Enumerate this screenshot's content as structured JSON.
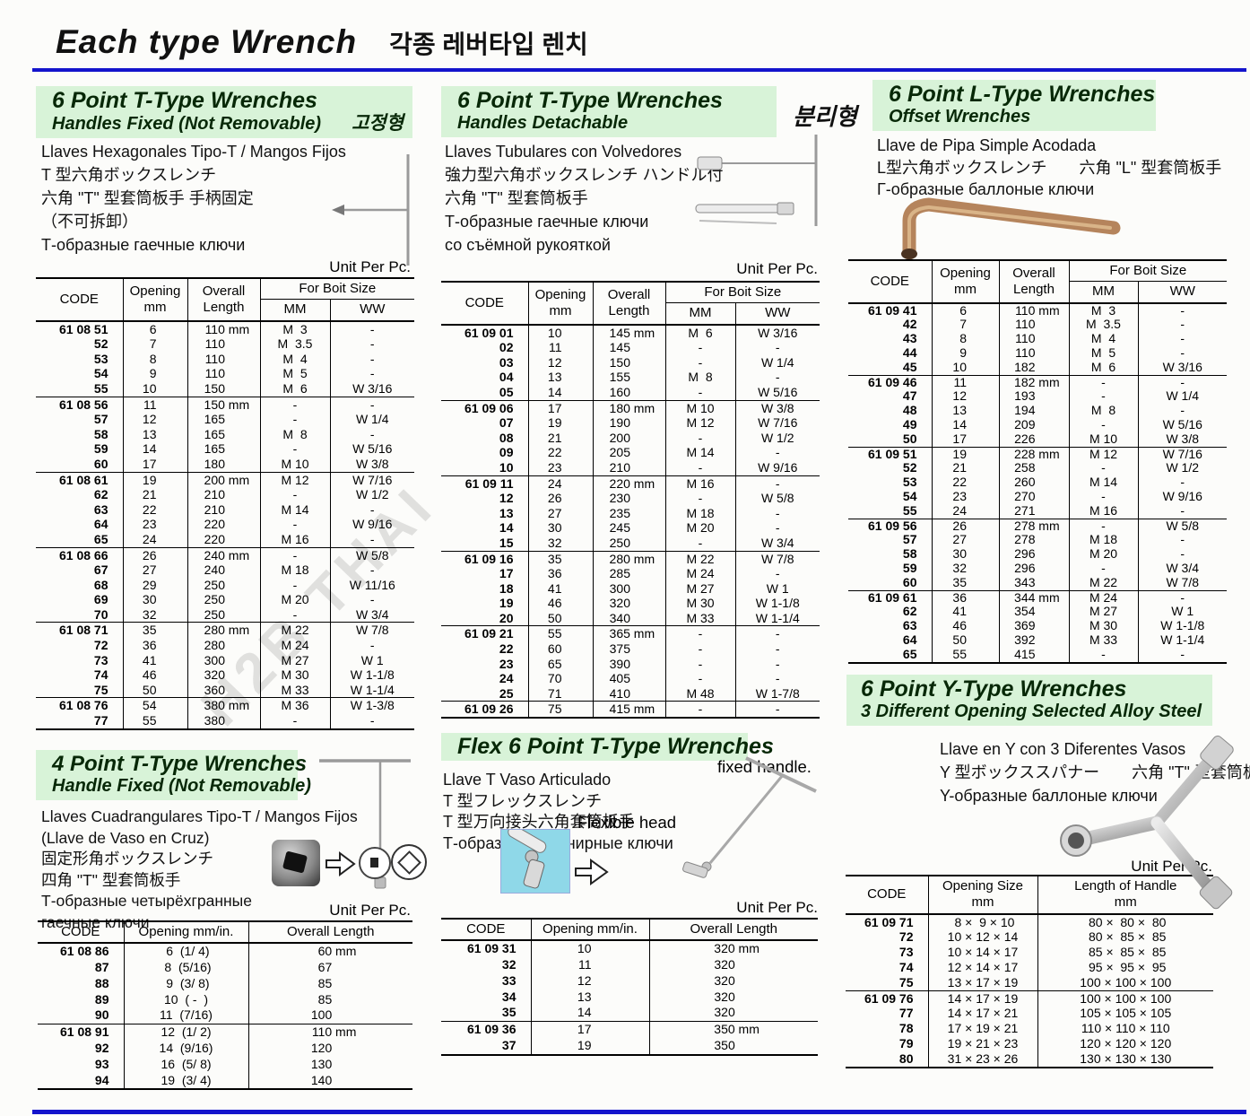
{
  "page": {
    "title_en": "Each type Wrench",
    "title_ko": "각종 레버타입 렌치"
  },
  "labels": {
    "unit": "Unit Per Pc.",
    "fixed_handle": "fixed handle.",
    "flexible_head": "Flexible head",
    "watermark": "H2B THAI"
  },
  "colors": {
    "blue": "#1414cc",
    "green": "#d8f3d8",
    "cyan": "#8fd8e8",
    "bronze": "#b5845c"
  },
  "headers4": {
    "code": "CODE",
    "opening1": "Opening",
    "opening2": "mm",
    "length1": "Overall",
    "length2": "Length",
    "bolt": "For Boit Size",
    "mm": "MM",
    "ww": "WW"
  },
  "headers3": {
    "code": "CODE",
    "opening": "Opening mm/in.",
    "length": "Overall Length"
  },
  "headersY": {
    "code": "CODE",
    "opening1": "Opening Size",
    "opening2": "mm",
    "length1": "Length of Handle",
    "length2": "mm"
  },
  "sections": {
    "t_fixed": {
      "h1": "6 Point T-Type Wrenches",
      "h2": "Handles Fixed (Not Removable)",
      "side": "고정형",
      "desc": [
        "Llaves Hexagonales Tipo-T / Mangos Fijos",
        "T 型六角ボックスレンチ",
        "六角 \"T\" 型套筒板手 手柄固定",
        "（不可拆卸）",
        "Т-образные гаечные ключи"
      ],
      "groups": [
        [
          [
            "61 08 51",
            "6",
            "110 mm",
            "M  3",
            "-"
          ],
          [
            "52",
            "7",
            "110",
            "M  3.5",
            "-"
          ],
          [
            "53",
            "8",
            "110",
            "M  4",
            "-"
          ],
          [
            "54",
            "9",
            "110",
            "M  5",
            "-"
          ],
          [
            "55",
            "10",
            "150",
            "M  6",
            "W 3/16"
          ]
        ],
        [
          [
            "61 08 56",
            "11",
            "150 mm",
            "-",
            "-"
          ],
          [
            "57",
            "12",
            "165",
            "-",
            "W 1/4"
          ],
          [
            "58",
            "13",
            "165",
            "M  8",
            "-"
          ],
          [
            "59",
            "14",
            "165",
            "-",
            "W 5/16"
          ],
          [
            "60",
            "17",
            "180",
            "M 10",
            "W 3/8"
          ]
        ],
        [
          [
            "61 08 61",
            "19",
            "200 mm",
            "M 12",
            "W 7/16"
          ],
          [
            "62",
            "21",
            "210",
            "-",
            "W 1/2"
          ],
          [
            "63",
            "22",
            "210",
            "M 14",
            "-"
          ],
          [
            "64",
            "23",
            "220",
            "-",
            "W 9/16"
          ],
          [
            "65",
            "24",
            "220",
            "M 16",
            "-"
          ]
        ],
        [
          [
            "61 08 66",
            "26",
            "240 mm",
            "-",
            "W 5/8"
          ],
          [
            "67",
            "27",
            "240",
            "M 18",
            "-"
          ],
          [
            "68",
            "29",
            "250",
            "-",
            "W 11/16"
          ],
          [
            "69",
            "30",
            "250",
            "M 20",
            "-"
          ],
          [
            "70",
            "32",
            "250",
            "-",
            "W 3/4"
          ]
        ],
        [
          [
            "61 08 71",
            "35",
            "280 mm",
            "M 22",
            "W 7/8"
          ],
          [
            "72",
            "36",
            "280",
            "M 24",
            "-"
          ],
          [
            "73",
            "41",
            "300",
            "M 27",
            "W 1"
          ],
          [
            "74",
            "46",
            "320",
            "M 30",
            "W 1-1/8"
          ],
          [
            "75",
            "50",
            "360",
            "M 33",
            "W 1-1/4"
          ]
        ],
        [
          [
            "61 08 76",
            "54",
            "380 mm",
            "M 36",
            "W 1-3/8"
          ],
          [
            "77",
            "55",
            "380",
            "-",
            "-"
          ]
        ]
      ]
    },
    "t_detach": {
      "h1": "6 Point T-Type Wrenches",
      "h2": "Handles Detachable",
      "side": "분리형",
      "desc": [
        "Llaves Tubulares con Volvedores",
        "強力型六角ボックスレンチ ハンドル付",
        "六角 \"T\" 型套筒板手",
        "Т-образные гаечные ключи",
        "со съёмной рукояткой"
      ],
      "groups": [
        [
          [
            "61 09 01",
            "10",
            "145 mm",
            "M  6",
            "W 3/16"
          ],
          [
            "02",
            "11",
            "145",
            "-",
            "-"
          ],
          [
            "03",
            "12",
            "150",
            "-",
            "W 1/4"
          ],
          [
            "04",
            "13",
            "155",
            "M  8",
            "-"
          ],
          [
            "05",
            "14",
            "160",
            "-",
            "W 5/16"
          ]
        ],
        [
          [
            "61 09 06",
            "17",
            "180 mm",
            "M 10",
            "W 3/8"
          ],
          [
            "07",
            "19",
            "190",
            "M 12",
            "W 7/16"
          ],
          [
            "08",
            "21",
            "200",
            "-",
            "W 1/2"
          ],
          [
            "09",
            "22",
            "205",
            "M 14",
            "-"
          ],
          [
            "10",
            "23",
            "210",
            "-",
            "W 9/16"
          ]
        ],
        [
          [
            "61 09 11",
            "24",
            "220 mm",
            "M 16",
            "-"
          ],
          [
            "12",
            "26",
            "230",
            "-",
            "W 5/8"
          ],
          [
            "13",
            "27",
            "235",
            "M 18",
            "-"
          ],
          [
            "14",
            "30",
            "245",
            "M 20",
            "-"
          ],
          [
            "15",
            "32",
            "250",
            "-",
            "W 3/4"
          ]
        ],
        [
          [
            "61 09 16",
            "35",
            "280 mm",
            "M 22",
            "W 7/8"
          ],
          [
            "17",
            "36",
            "285",
            "M 24",
            "-"
          ],
          [
            "18",
            "41",
            "300",
            "M 27",
            "W 1"
          ],
          [
            "19",
            "46",
            "320",
            "M 30",
            "W 1-1/8"
          ],
          [
            "20",
            "50",
            "340",
            "M 33",
            "W 1-1/4"
          ]
        ],
        [
          [
            "61 09 21",
            "55",
            "365 mm",
            "-",
            "-"
          ],
          [
            "22",
            "60",
            "375",
            "-",
            "-"
          ],
          [
            "23",
            "65",
            "390",
            "-",
            "-"
          ],
          [
            "24",
            "70",
            "405",
            "-",
            "-"
          ],
          [
            "25",
            "71",
            "410",
            "M 48",
            "W 1-7/8"
          ]
        ],
        [
          [
            "61 09 26",
            "75",
            "415 mm",
            "-",
            "-"
          ]
        ]
      ]
    },
    "l_type": {
      "h1": "6 Point L-Type Wrenches",
      "h2": "Offset Wrenches",
      "desc": [
        "Llave de Pipa Simple Acodada",
        "L型六角ボックスレンチ　　六角 \"L\" 型套筒板手",
        "Г-образные баллоные ключи"
      ],
      "groups": [
        [
          [
            "61 09 41",
            "6",
            "110 mm",
            "M  3",
            "-"
          ],
          [
            "42",
            "7",
            "110",
            "M  3.5",
            "-"
          ],
          [
            "43",
            "8",
            "110",
            "M  4",
            "-"
          ],
          [
            "44",
            "9",
            "110",
            "M  5",
            "-"
          ],
          [
            "45",
            "10",
            "182",
            "M  6",
            "W 3/16"
          ]
        ],
        [
          [
            "61 09 46",
            "11",
            "182 mm",
            "-",
            "-"
          ],
          [
            "47",
            "12",
            "193",
            "-",
            "W 1/4"
          ],
          [
            "48",
            "13",
            "194",
            "M  8",
            "-"
          ],
          [
            "49",
            "14",
            "209",
            "-",
            "W 5/16"
          ],
          [
            "50",
            "17",
            "226",
            "M 10",
            "W 3/8"
          ]
        ],
        [
          [
            "61 09 51",
            "19",
            "228 mm",
            "M 12",
            "W 7/16"
          ],
          [
            "52",
            "21",
            "258",
            "-",
            "W 1/2"
          ],
          [
            "53",
            "22",
            "260",
            "M 14",
            "-"
          ],
          [
            "54",
            "23",
            "270",
            "-",
            "W 9/16"
          ],
          [
            "55",
            "24",
            "271",
            "M 16",
            "-"
          ]
        ],
        [
          [
            "61 09 56",
            "26",
            "278 mm",
            "-",
            "W 5/8"
          ],
          [
            "57",
            "27",
            "278",
            "M 18",
            "-"
          ],
          [
            "58",
            "30",
            "296",
            "M 20",
            "-"
          ],
          [
            "59",
            "32",
            "296",
            "-",
            "W 3/4"
          ],
          [
            "60",
            "35",
            "343",
            "M 22",
            "W 7/8"
          ]
        ],
        [
          [
            "61 09 61",
            "36",
            "344 mm",
            "M 24",
            "-"
          ],
          [
            "62",
            "41",
            "354",
            "M 27",
            "W 1"
          ],
          [
            "63",
            "46",
            "369",
            "M 30",
            "W 1-1/8"
          ],
          [
            "64",
            "50",
            "392",
            "M 33",
            "W 1-1/4"
          ],
          [
            "65",
            "55",
            "415",
            "-",
            "-"
          ]
        ]
      ]
    },
    "four_point": {
      "h1": "4 Point T-Type Wrenches",
      "h2": "Handle Fixed (Not Removable)",
      "desc": [
        "Llaves Cuadrangulares Tipo-T / Mangos Fijos",
        "(Llave de Vaso en Cruz)",
        "固定形角ボックスレンチ",
        "四角 \"T\" 型套筒板手",
        "Т-образные четырёхгранные",
        "гаечные ключи"
      ],
      "groups": [
        [
          [
            "61 08 86",
            " 6  (1/ 4)",
            "60 mm"
          ],
          [
            "87",
            " 8  (5/16)",
            "67"
          ],
          [
            "88",
            " 9  (3/ 8)",
            "85"
          ],
          [
            "89",
            "10  ( -  )",
            "85"
          ],
          [
            "90",
            "11  (7/16)",
            "100"
          ]
        ],
        [
          [
            "61 08 91",
            "12  (1/ 2)",
            "110 mm"
          ],
          [
            "92",
            "14  (9/16)",
            "120"
          ],
          [
            "93",
            "16  (5/ 8)",
            "130"
          ],
          [
            "94",
            "19  (3/ 4)",
            "140"
          ]
        ]
      ]
    },
    "flex": {
      "h1": "Flex 6 Point T-Type Wrenches",
      "desc": [
        "Llave T Vaso Articulado",
        "T 型フレックスレンチ",
        "T 型万向接头六角套筒板手",
        "Т-образные шарнирные ключи"
      ],
      "groups": [
        [
          [
            "61 09 31",
            "10",
            "320 mm"
          ],
          [
            "32",
            "11",
            "320"
          ],
          [
            "33",
            "12",
            "320"
          ],
          [
            "34",
            "13",
            "320"
          ],
          [
            "35",
            "14",
            "320"
          ]
        ],
        [
          [
            "61 09 36",
            "17",
            "350 mm"
          ],
          [
            "37",
            "19",
            "350"
          ]
        ]
      ]
    },
    "y_type": {
      "h1": "6 Point Y-Type Wrenches",
      "h2": "3 Different Opening Selected Alloy Steel",
      "desc": [
        "Llave en Y con 3 Diferentes Vasos",
        "Y 型ボックススパナー　　六角 \"T\" 型套筒板手",
        "Y-образные баллоные ключи"
      ],
      "groups": [
        [
          [
            "61 09 71",
            " 8 ×  9 × 10",
            " 80 ×  80 ×  80"
          ],
          [
            "72",
            "10 × 12 × 14",
            " 80 ×  85 ×  85"
          ],
          [
            "73",
            "10 × 14 × 17",
            " 85 ×  85 ×  85"
          ],
          [
            "74",
            "12 × 14 × 17",
            " 95 ×  95 ×  95"
          ],
          [
            "75",
            "13 × 17 × 19",
            "100 × 100 × 100"
          ]
        ],
        [
          [
            "61 09 76",
            "14 × 17 × 19",
            "100 × 100 × 100"
          ],
          [
            "77",
            "14 × 17 × 21",
            "105 × 105 × 105"
          ],
          [
            "78",
            "17 × 19 × 21",
            "110 × 110 × 110"
          ],
          [
            "79",
            "19 × 21 × 23",
            "120 × 120 × 120"
          ],
          [
            "80",
            "31 × 23 × 26",
            "130 × 130 × 130"
          ]
        ]
      ]
    }
  }
}
